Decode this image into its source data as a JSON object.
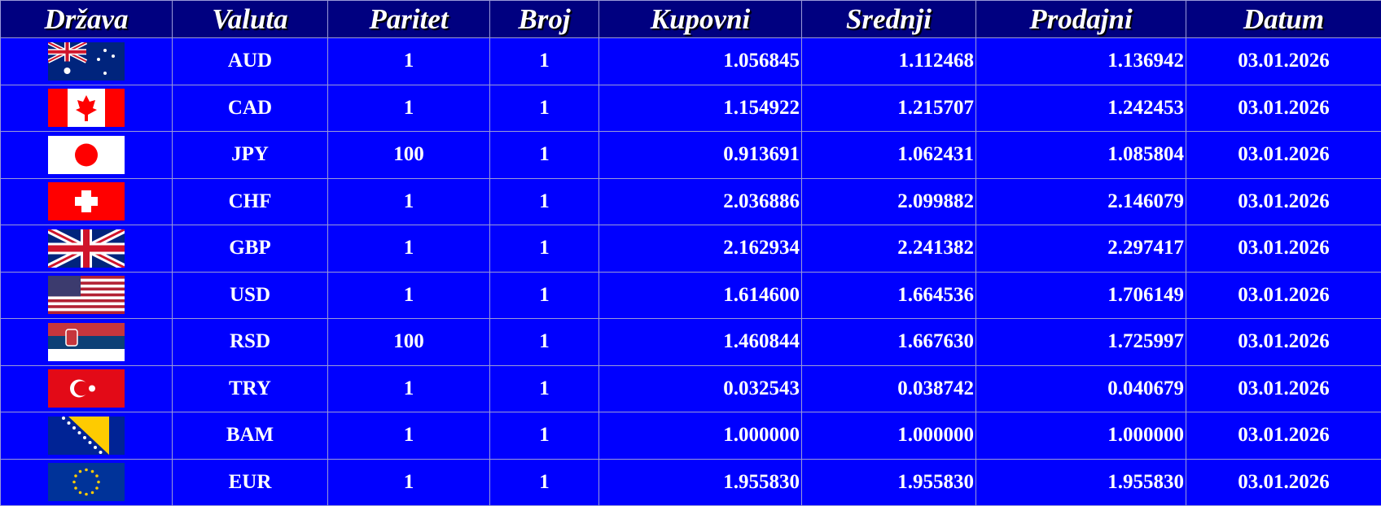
{
  "headers": [
    "Država",
    "Valuta",
    "Paritet",
    "Broj",
    "Kupovni",
    "Srednji",
    "Prodajni",
    "Datum"
  ],
  "rows": [
    {
      "flag": "australia-flag",
      "currency": "AUD",
      "parity": "1",
      "count": "1",
      "buy": "1.056845",
      "mid": "1.112468",
      "sell": "1.136942",
      "date": "03.01.2026"
    },
    {
      "flag": "canada-flag",
      "currency": "CAD",
      "parity": "1",
      "count": "1",
      "buy": "1.154922",
      "mid": "1.215707",
      "sell": "1.242453",
      "date": "03.01.2026"
    },
    {
      "flag": "japan-flag",
      "currency": "JPY",
      "parity": "100",
      "count": "1",
      "buy": "0.913691",
      "mid": "1.062431",
      "sell": "1.085804",
      "date": "03.01.2026"
    },
    {
      "flag": "switzerland-flag",
      "currency": "CHF",
      "parity": "1",
      "count": "1",
      "buy": "2.036886",
      "mid": "2.099882",
      "sell": "2.146079",
      "date": "03.01.2026"
    },
    {
      "flag": "uk-flag",
      "currency": "GBP",
      "parity": "1",
      "count": "1",
      "buy": "2.162934",
      "mid": "2.241382",
      "sell": "2.297417",
      "date": "03.01.2026"
    },
    {
      "flag": "usa-flag",
      "currency": "USD",
      "parity": "1",
      "count": "1",
      "buy": "1.614600",
      "mid": "1.664536",
      "sell": "1.706149",
      "date": "03.01.2026"
    },
    {
      "flag": "serbia-flag",
      "currency": "RSD",
      "parity": "100",
      "count": "1",
      "buy": "1.460844",
      "mid": "1.667630",
      "sell": "1.725997",
      "date": "03.01.2026"
    },
    {
      "flag": "turkey-flag",
      "currency": "TRY",
      "parity": "1",
      "count": "1",
      "buy": "0.032543",
      "mid": "0.038742",
      "sell": "0.040679",
      "date": "03.01.2026"
    },
    {
      "flag": "bosnia-flag",
      "currency": "BAM",
      "parity": "1",
      "count": "1",
      "buy": "1.000000",
      "mid": "1.000000",
      "sell": "1.000000",
      "date": "03.01.2026"
    },
    {
      "flag": "eu-flag",
      "currency": "EUR",
      "parity": "1",
      "count": "1",
      "buy": "1.955830",
      "mid": "1.955830",
      "sell": "1.955830",
      "date": "03.01.2026"
    }
  ],
  "colors": {
    "header_bg": "#000080",
    "row_bg": "#0000ff",
    "text": "#ffffff"
  }
}
